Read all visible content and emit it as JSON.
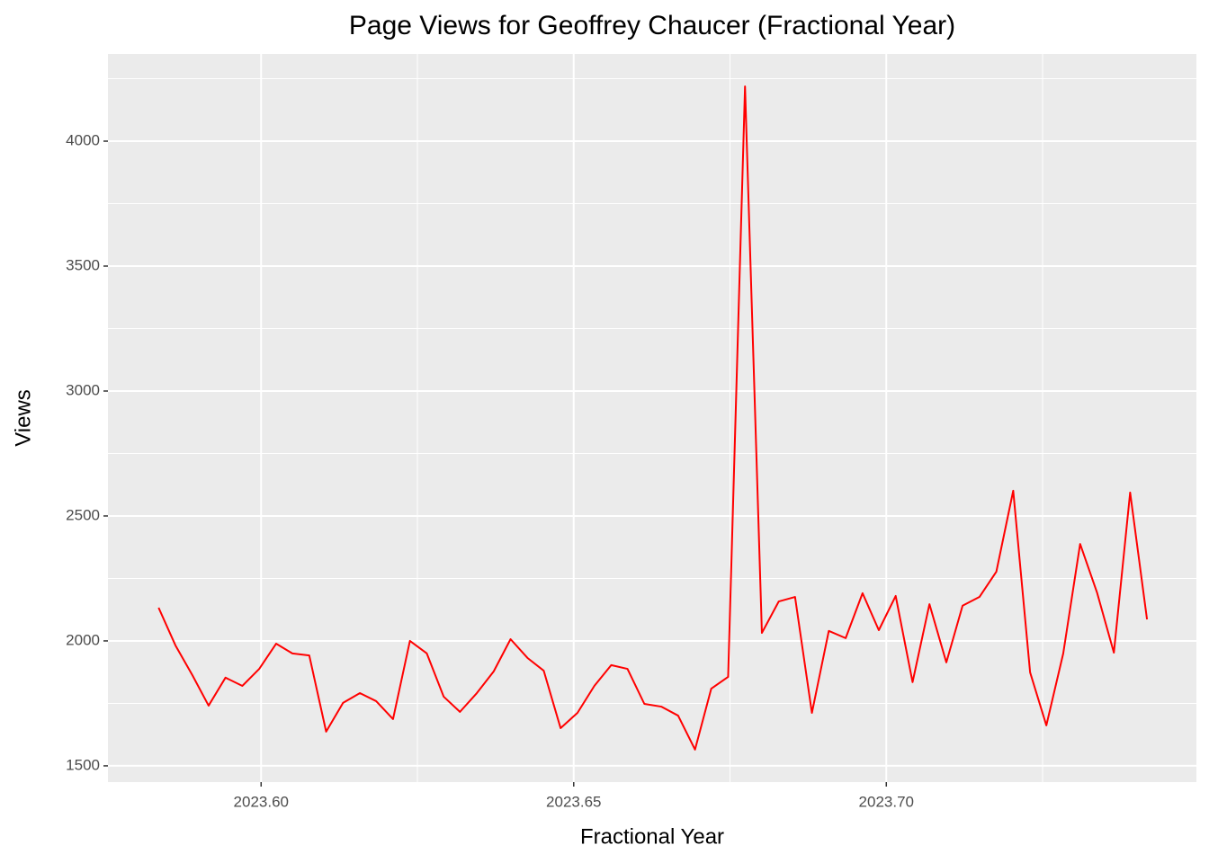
{
  "chart_data": {
    "type": "line",
    "title": "Page Views for Geoffrey Chaucer (Fractional Year)",
    "x_label": "Fractional Year",
    "y_label": "Views",
    "x": [
      2023.5836,
      2023.5863,
      2023.589,
      2023.5916,
      2023.5943,
      2023.597,
      2023.5997,
      2023.6024,
      2023.605,
      2023.6077,
      2023.6104,
      2023.6131,
      2023.6158,
      2023.6184,
      2023.6211,
      2023.6238,
      2023.6265,
      2023.6292,
      2023.6318,
      2023.6345,
      2023.6372,
      2023.6399,
      2023.6426,
      2023.6452,
      2023.6479,
      2023.6506,
      2023.6533,
      2023.656,
      2023.6586,
      2023.6613,
      2023.664,
      2023.6667,
      2023.6694,
      2023.672,
      2023.6747,
      2023.6774,
      2023.6801,
      2023.6828,
      2023.6854,
      2023.6881,
      2023.6908,
      2023.6935,
      2023.6962,
      2023.6988,
      2023.7015,
      2023.7042,
      2023.7069,
      2023.7096,
      2023.7122,
      2023.7149,
      2023.7176,
      2023.7203,
      2023.723,
      2023.7256,
      2023.7283,
      2023.731,
      2023.7337,
      2023.7364,
      2023.739,
      2023.7417
    ],
    "series": [
      {
        "name": "Views",
        "color": "#ff0000",
        "values": [
          2133,
          1982,
          1863,
          1741,
          1853,
          1820,
          1888,
          1989,
          1950,
          1942,
          1637,
          1752,
          1791,
          1759,
          1687,
          2000,
          1950,
          1777,
          1716,
          1791,
          1878,
          2007,
          1932,
          1881,
          1651,
          1712,
          1820,
          1903,
          1888,
          1748,
          1737,
          1701,
          1565,
          1809,
          1856,
          4219,
          2032,
          2158,
          2176,
          1712,
          2040,
          2011,
          2191,
          2043,
          2180,
          1835,
          2147,
          1914,
          2141,
          2176,
          2277,
          2601,
          1874,
          1662,
          1950,
          2388,
          2194,
          1953,
          2594,
          2086
        ]
      }
    ],
    "xlim": [
      2023.5755,
      2023.7496
    ],
    "ylim": [
      1435,
      4349
    ],
    "xticks": [
      {
        "value": 2023.6,
        "label": "2023.60"
      },
      {
        "value": 2023.65,
        "label": "2023.65"
      },
      {
        "value": 2023.7,
        "label": "2023.70"
      }
    ],
    "yticks": [
      1500,
      2000,
      2500,
      3000,
      3500,
      4000
    ],
    "grid": true
  }
}
